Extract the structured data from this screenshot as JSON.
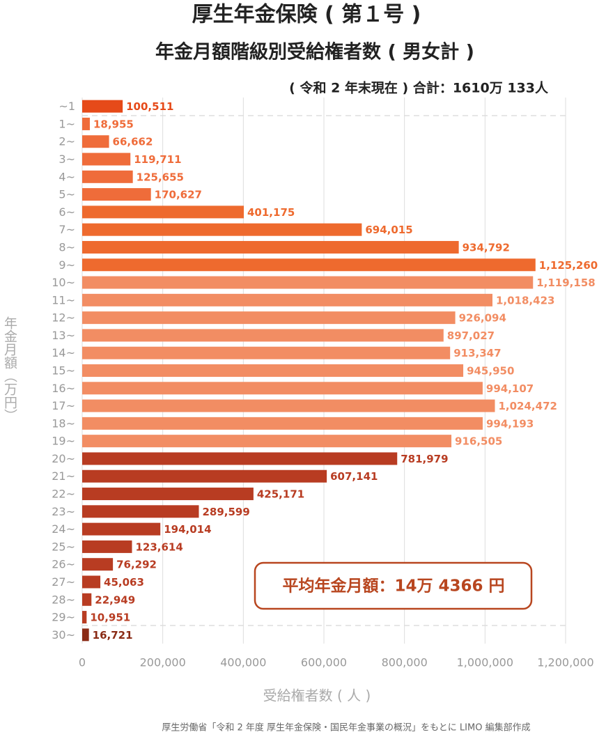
{
  "chart_data": {
    "type": "barh",
    "title": "厚生年金保険 ( 第１号 )",
    "subtitle": "年金月額階級別受給権者数 ( 男女計 )",
    "note": "( 令和 2 年末現在 ) 合計：1610万 133人",
    "annotation": "平均年金月額：14万 4366 円",
    "xlabel": "受給権者数 ( 人 )",
    "ylabel": "年金月額（万円）",
    "source": "厚生労働省「令和 2 年度 厚生年金保険・国民年金事業の概況」をもとに LIMO 編集部作成",
    "categories": [
      "~1",
      "1~",
      "2~",
      "3~",
      "4~",
      "5~",
      "6~",
      "7~",
      "8~",
      "9~",
      "10~",
      "11~",
      "12~",
      "13~",
      "14~",
      "15~",
      "16~",
      "17~",
      "18~",
      "19~",
      "20~",
      "21~",
      "22~",
      "23~",
      "24~",
      "25~",
      "26~",
      "27~",
      "28~",
      "29~",
      "30~"
    ],
    "values": [
      100511,
      18955,
      66662,
      119711,
      125655,
      170627,
      401175,
      694015,
      934792,
      1125260,
      1119158,
      1018423,
      926094,
      897027,
      913347,
      945950,
      994107,
      1024472,
      994193,
      916505,
      781979,
      607141,
      425171,
      289599,
      194014,
      123614,
      76292,
      45063,
      22949,
      10951,
      16721
    ],
    "value_labels": [
      "100,511",
      "18,955",
      "66,662",
      "119,711",
      "125,655",
      "170,627",
      "401,175",
      "694,015",
      "934,792",
      "1,125,260",
      "1,119,158",
      "1,018,423",
      "926,094",
      "897,027",
      "913,347",
      "945,950",
      "994,107",
      "1,024,472",
      "994,193",
      "916,505",
      "781,979",
      "607,141",
      "425,171",
      "289,599",
      "194,014",
      "123,614",
      "76,292",
      "45,063",
      "22,949",
      "10,951",
      "16,721"
    ],
    "colors": [
      "#e64a19",
      "#ef6c3a",
      "#ef6c3a",
      "#ef6c3a",
      "#ef6c3a",
      "#ef6c3a",
      "#ee6a2e",
      "#ee6a2e",
      "#ee6a2e",
      "#ee6a2e",
      "#f28d63",
      "#f28d63",
      "#f28d63",
      "#f28d63",
      "#f28d63",
      "#f28d63",
      "#f28d63",
      "#f28d63",
      "#f28d63",
      "#f28d63",
      "#b83c22",
      "#b83c22",
      "#b83c22",
      "#b83c22",
      "#b83c22",
      "#b83c22",
      "#b83c22",
      "#b83c22",
      "#b83c22",
      "#b83c22",
      "#8a2b15"
    ],
    "xlim": [
      0,
      1200000
    ],
    "xticks": [
      0,
      {
        "value": 200000,
        "label": "200,000"
      },
      {
        "value": 400000,
        "label": "400,000"
      },
      {
        "value": 600000,
        "label": "600,000"
      },
      {
        "value": 800000,
        "label": "800,000"
      },
      {
        "value": 1000000,
        "label": "1,000,000"
      },
      {
        "value": 1200000,
        "label": "1,200,000"
      }
    ],
    "grid": true
  }
}
